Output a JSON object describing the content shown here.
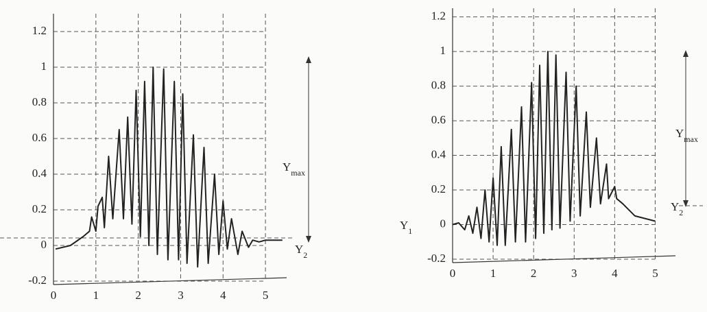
{
  "chart_data": [
    {
      "type": "line",
      "grid": true,
      "color": "#222222",
      "xlim": [
        0,
        5.5
      ],
      "ylim": [
        -0.2,
        1.3
      ],
      "xticks": [
        0,
        1,
        2,
        3,
        4,
        5
      ],
      "yticks": [
        -0.2,
        0,
        0.2,
        0.4,
        0.6,
        0.8,
        1,
        1.2
      ],
      "x": [
        0.05,
        0.4,
        0.7,
        0.85,
        0.9,
        1.0,
        1.05,
        1.15,
        1.2,
        1.3,
        1.4,
        1.55,
        1.65,
        1.75,
        1.85,
        1.95,
        2.05,
        2.15,
        2.25,
        2.35,
        2.45,
        2.6,
        2.7,
        2.85,
        2.95,
        3.05,
        3.15,
        3.3,
        3.4,
        3.55,
        3.65,
        3.8,
        3.9,
        4.0,
        4.1,
        4.2,
        4.35,
        4.45,
        4.6,
        4.7,
        4.85,
        5.0,
        5.4
      ],
      "values": [
        -0.02,
        0.0,
        0.05,
        0.08,
        0.16,
        0.08,
        0.22,
        0.27,
        0.1,
        0.5,
        0.15,
        0.65,
        0.15,
        0.72,
        0.12,
        0.87,
        0.05,
        0.92,
        0.0,
        1.0,
        -0.05,
        0.99,
        -0.08,
        0.92,
        -0.08,
        0.85,
        -0.1,
        0.62,
        -0.12,
        0.55,
        -0.1,
        0.4,
        -0.05,
        0.25,
        -0.02,
        0.15,
        -0.05,
        0.08,
        -0.01,
        0.03,
        0.02,
        0.03,
        0.03
      ],
      "annotations": [
        {
          "text": "Y",
          "sub": "max"
        },
        {
          "text": "Y",
          "sub": "2"
        }
      ]
    },
    {
      "type": "line",
      "grid": true,
      "color": "#222222",
      "xlim": [
        0,
        5.5
      ],
      "ylim": [
        -0.2,
        1.25
      ],
      "xticks": [
        0,
        1,
        2,
        3,
        4,
        5
      ],
      "yticks": [
        -0.2,
        0,
        0.2,
        0.4,
        0.6,
        0.8,
        1,
        1.2
      ],
      "x": [
        0,
        0.15,
        0.3,
        0.4,
        0.5,
        0.6,
        0.7,
        0.8,
        0.9,
        1.0,
        1.1,
        1.2,
        1.3,
        1.45,
        1.55,
        1.7,
        1.8,
        1.95,
        2.05,
        2.15,
        2.25,
        2.35,
        2.45,
        2.55,
        2.65,
        2.8,
        2.9,
        3.05,
        3.15,
        3.3,
        3.4,
        3.55,
        3.65,
        3.8,
        3.85,
        4.0,
        4.05,
        4.2,
        4.5,
        5.0
      ],
      "values": [
        0,
        0.01,
        -0.03,
        0.05,
        -0.05,
        0.1,
        -0.08,
        0.2,
        -0.1,
        0.27,
        -0.12,
        0.45,
        -0.12,
        0.55,
        -0.1,
        0.68,
        -0.1,
        0.82,
        -0.08,
        0.92,
        -0.05,
        1.0,
        -0.03,
        0.98,
        -0.02,
        0.88,
        0.02,
        0.8,
        0.05,
        0.65,
        0.1,
        0.5,
        0.12,
        0.35,
        0.15,
        0.22,
        0.15,
        0.12,
        0.05,
        0.02
      ],
      "annotations": [
        {
          "text": "Y",
          "sub": "max"
        },
        {
          "text": "Y",
          "sub": "2"
        },
        {
          "text": "Y",
          "sub": "1"
        }
      ]
    }
  ]
}
